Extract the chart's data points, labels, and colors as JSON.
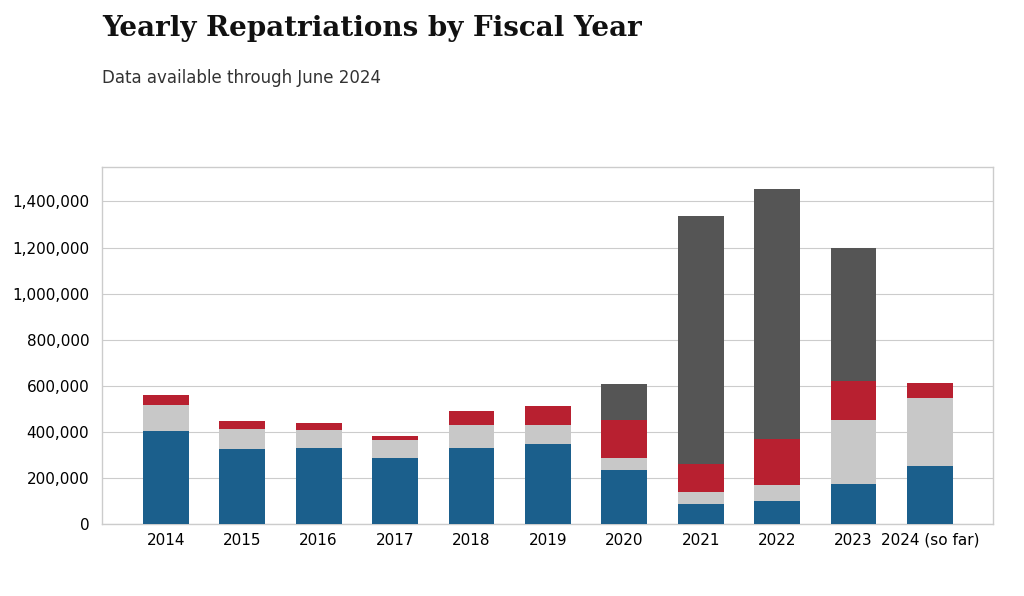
{
  "categories": [
    "2014",
    "2015",
    "2016",
    "2017",
    "2018",
    "2019",
    "2020",
    "2021",
    "2022",
    "2023",
    "2024 (so far)"
  ],
  "blue": [
    405000,
    325000,
    330000,
    290000,
    330000,
    350000,
    235000,
    90000,
    100000,
    175000,
    255000
  ],
  "lightgray": [
    115000,
    90000,
    80000,
    75000,
    100000,
    80000,
    55000,
    50000,
    70000,
    280000,
    295000
  ],
  "red": [
    40000,
    35000,
    30000,
    20000,
    60000,
    85000,
    165000,
    120000,
    200000,
    165000,
    65000
  ],
  "darkgray": [
    0,
    0,
    0,
    0,
    0,
    0,
    155000,
    1075000,
    1085000,
    580000,
    0
  ],
  "color_blue": "#1b5f8c",
  "color_lightgray": "#c8c8c8",
  "color_red": "#b82030",
  "color_darkgray": "#555555",
  "title": "Yearly Repatriations by Fiscal Year",
  "subtitle": "Data available through June 2024",
  "ylim": [
    0,
    1550000
  ],
  "yticks": [
    0,
    200000,
    400000,
    600000,
    800000,
    1000000,
    1200000,
    1400000
  ],
  "background_color": "#ffffff",
  "plot_bg_color": "#ffffff",
  "grid_color": "#cccccc",
  "box_edge_color": "#cccccc",
  "title_fontsize": 20,
  "subtitle_fontsize": 12,
  "tick_fontsize": 11,
  "bar_width": 0.6
}
